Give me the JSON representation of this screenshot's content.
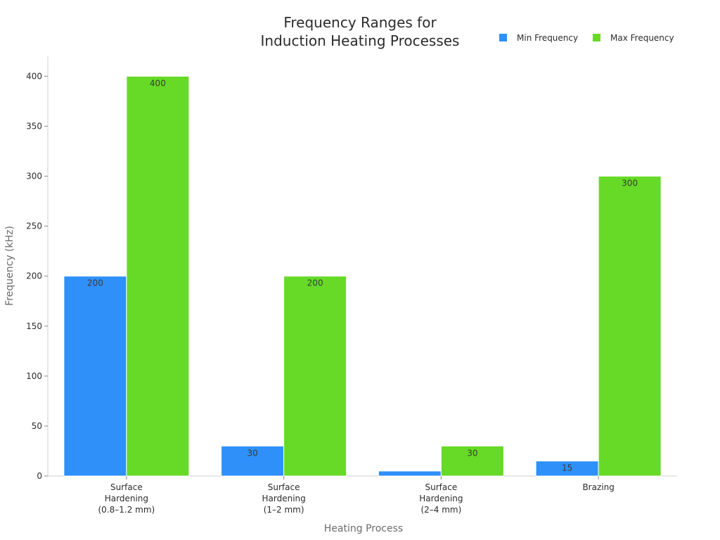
{
  "chart_data": {
    "type": "bar",
    "title_lines": [
      "Frequency Ranges for",
      "Induction Heating Processes"
    ],
    "xlabel": "Heating Process",
    "ylabel": "Frequency (kHz)",
    "ylim": [
      0,
      420
    ],
    "yticks": [
      0,
      50,
      100,
      150,
      200,
      250,
      300,
      350,
      400
    ],
    "grid": false,
    "legend_position": "top-right",
    "categories": [
      [
        "Surface",
        "Hardening",
        "(0.8–1.2 mm)"
      ],
      [
        "Surface",
        "Hardening",
        "(1–2 mm)"
      ],
      [
        "Surface",
        "Hardening",
        "(2–4 mm)"
      ],
      [
        "Brazing"
      ]
    ],
    "series": [
      {
        "name": "Min Frequency",
        "color": "#2e90f8",
        "values": [
          200,
          30,
          5,
          15
        ],
        "labels": [
          "200",
          "30",
          "",
          "15"
        ]
      },
      {
        "name": "Max Frequency",
        "color": "#66da26",
        "values": [
          400,
          200,
          30,
          300
        ],
        "labels": [
          "400",
          "200",
          "30",
          "300"
        ]
      }
    ]
  }
}
